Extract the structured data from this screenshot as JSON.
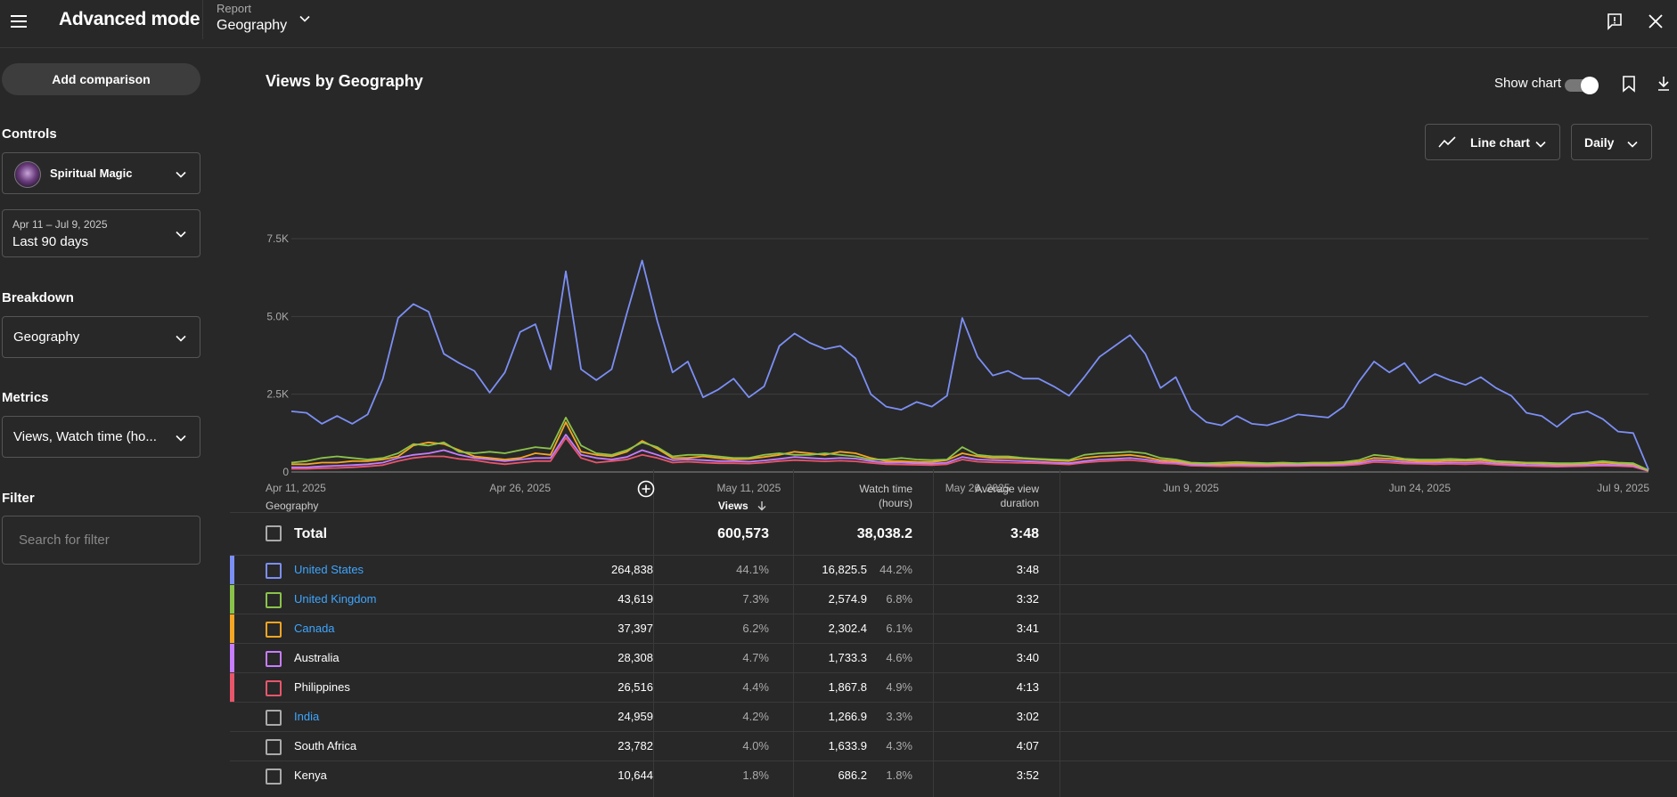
{
  "header": {
    "app_title": "Advanced mode",
    "report_label": "Report",
    "report_value": "Geography"
  },
  "sidebar": {
    "add_comparison": "Add comparison",
    "controls_label": "Controls",
    "channel_name": "Spiritual Magic",
    "date_range": "Apr 11 – Jul 9, 2025",
    "date_label": "Last 90 days",
    "breakdown_label": "Breakdown",
    "breakdown_value": "Geography",
    "metrics_label": "Metrics",
    "metrics_value": "Views, Watch time (ho...",
    "filter_label": "Filter",
    "filter_placeholder": "Search for filter"
  },
  "main": {
    "chart_title": "Views by Geography",
    "show_chart_label": "Show chart",
    "show_chart_on": true,
    "chart_type_label": "Line chart",
    "interval_label": "Daily"
  },
  "chart_data": {
    "type": "line",
    "x_ticks": [
      "Apr 11, 2025",
      "Apr 26, 2025",
      "May 11, 2025",
      "May 26, 2025",
      "Jun 9, 2025",
      "Jun 24, 2025",
      "Jul 9, 2025"
    ],
    "y_ticks": [
      "0",
      "2.5K",
      "5.0K",
      "7.5K"
    ],
    "ylim": [
      0,
      7500
    ],
    "x_start": "Apr 11, 2025",
    "x_end": "Jul 9, 2025",
    "grid": true,
    "series": [
      {
        "color": "#7c8ff5",
        "values": [
          1950,
          1900,
          1550,
          1800,
          1550,
          1850,
          3000,
          4950,
          5400,
          5150,
          3800,
          3500,
          3250,
          2550,
          3200,
          4500,
          4750,
          3300,
          6450,
          3300,
          2950,
          3300,
          5100,
          6800,
          4850,
          3200,
          3550,
          2400,
          2650,
          3000,
          2400,
          2750,
          4050,
          4450,
          4150,
          3950,
          4050,
          3650,
          2500,
          2100,
          2000,
          2250,
          2100,
          2450,
          4950,
          3700,
          3100,
          3250,
          3000,
          3000,
          2750,
          2450,
          3050,
          3700,
          4050,
          4400,
          3800,
          2700,
          3050,
          2000,
          1600,
          1500,
          1800,
          1550,
          1500,
          1650,
          1850,
          1800,
          1750,
          2100,
          2900,
          3550,
          3200,
          3500,
          2850,
          3150,
          2950,
          2800,
          3050,
          2700,
          2450,
          1900,
          1800,
          1450,
          1850,
          1950,
          1700,
          1300,
          1250,
          80
        ]
      },
      {
        "color": "#8bc34a",
        "values": [
          300,
          350,
          450,
          500,
          450,
          400,
          450,
          600,
          900,
          850,
          950,
          650,
          600,
          650,
          600,
          700,
          800,
          750,
          1750,
          850,
          600,
          550,
          700,
          950,
          800,
          500,
          550,
          550,
          500,
          450,
          450,
          550,
          600,
          550,
          550,
          600,
          550,
          500,
          400,
          400,
          450,
          400,
          380,
          400,
          800,
          550,
          500,
          500,
          450,
          420,
          400,
          380,
          550,
          600,
          620,
          650,
          600,
          450,
          400,
          300,
          280,
          300,
          320,
          300,
          280,
          300,
          280,
          300,
          300,
          320,
          380,
          550,
          500,
          420,
          400,
          400,
          420,
          400,
          430,
          350,
          330,
          300,
          300,
          280,
          280,
          300,
          350,
          300,
          280,
          60
        ]
      },
      {
        "color": "#f5a623",
        "values": [
          250,
          250,
          300,
          300,
          350,
          350,
          400,
          500,
          850,
          950,
          900,
          700,
          500,
          450,
          400,
          450,
          600,
          550,
          1600,
          650,
          550,
          500,
          650,
          1000,
          750,
          450,
          450,
          500,
          450,
          400,
          420,
          480,
          550,
          650,
          600,
          550,
          650,
          600,
          450,
          350,
          350,
          330,
          320,
          380,
          600,
          500,
          450,
          450,
          430,
          400,
          370,
          350,
          450,
          500,
          520,
          550,
          480,
          380,
          350,
          280,
          260,
          250,
          270,
          260,
          250,
          260,
          260,
          270,
          270,
          290,
          330,
          450,
          430,
          380,
          350,
          350,
          370,
          360,
          380,
          320,
          300,
          280,
          270,
          250,
          250,
          270,
          300,
          270,
          250,
          50
        ]
      },
      {
        "color": "#c77dff",
        "values": [
          150,
          150,
          180,
          200,
          220,
          250,
          300,
          450,
          550,
          600,
          700,
          550,
          450,
          400,
          350,
          400,
          450,
          450,
          1200,
          550,
          450,
          400,
          480,
          700,
          550,
          380,
          400,
          380,
          350,
          350,
          330,
          370,
          420,
          480,
          450,
          420,
          450,
          430,
          350,
          300,
          300,
          280,
          270,
          300,
          480,
          400,
          380,
          370,
          350,
          330,
          300,
          280,
          350,
          400,
          420,
          450,
          400,
          330,
          300,
          240,
          220,
          220,
          230,
          220,
          210,
          220,
          220,
          230,
          230,
          250,
          280,
          380,
          360,
          320,
          300,
          300,
          310,
          300,
          320,
          270,
          250,
          230,
          220,
          200,
          210,
          220,
          240,
          220,
          200,
          40
        ]
      },
      {
        "color": "#e8566c",
        "values": [
          100,
          100,
          120,
          130,
          150,
          180,
          220,
          350,
          450,
          500,
          500,
          420,
          380,
          300,
          250,
          300,
          350,
          350,
          1100,
          450,
          300,
          350,
          400,
          550,
          450,
          300,
          330,
          300,
          280,
          280,
          270,
          300,
          350,
          380,
          360,
          340,
          360,
          340,
          290,
          250,
          240,
          230,
          220,
          250,
          400,
          330,
          310,
          300,
          290,
          280,
          260,
          240,
          300,
          340,
          360,
          380,
          340,
          280,
          260,
          200,
          190,
          180,
          190,
          180,
          180,
          190,
          190,
          200,
          200,
          210,
          240,
          320,
          300,
          270,
          260,
          250,
          260,
          250,
          270,
          230,
          210,
          190,
          180,
          170,
          180,
          190,
          200,
          190,
          170,
          30
        ]
      }
    ]
  },
  "table": {
    "headers": {
      "geography": "Geography",
      "views": "Views",
      "watch_time_1": "Watch time",
      "watch_time_2": "(hours)",
      "avd_1": "Average view",
      "avd_2": "duration"
    },
    "total": {
      "label": "Total",
      "views": "600,573",
      "watch_time": "38,038.2",
      "avd": "3:48"
    },
    "rows": [
      {
        "name": "United States",
        "views": "264,838",
        "views_pct": "44.1%",
        "watch": "16,825.5",
        "watch_pct": "44.2%",
        "avd": "3:48",
        "color": "#7c8ff5",
        "link": true
      },
      {
        "name": "United Kingdom",
        "views": "43,619",
        "views_pct": "7.3%",
        "watch": "2,574.9",
        "watch_pct": "6.8%",
        "avd": "3:32",
        "color": "#8bc34a",
        "link": true
      },
      {
        "name": "Canada",
        "views": "37,397",
        "views_pct": "6.2%",
        "watch": "2,302.4",
        "watch_pct": "6.1%",
        "avd": "3:41",
        "color": "#f5a623",
        "link": true
      },
      {
        "name": "Australia",
        "views": "28,308",
        "views_pct": "4.7%",
        "watch": "1,733.3",
        "watch_pct": "4.6%",
        "avd": "3:40",
        "color": "#c77dff",
        "link": false
      },
      {
        "name": "Philippines",
        "views": "26,516",
        "views_pct": "4.4%",
        "watch": "1,867.8",
        "watch_pct": "4.9%",
        "avd": "4:13",
        "color": "#e8566c",
        "link": false
      },
      {
        "name": "India",
        "views": "24,959",
        "views_pct": "4.2%",
        "watch": "1,266.9",
        "watch_pct": "3.3%",
        "avd": "3:02",
        "color": "",
        "link": true
      },
      {
        "name": "South Africa",
        "views": "23,782",
        "views_pct": "4.0%",
        "watch": "1,633.9",
        "watch_pct": "4.3%",
        "avd": "4:07",
        "color": "",
        "link": false
      },
      {
        "name": "Kenya",
        "views": "10,644",
        "views_pct": "1.8%",
        "watch": "686.2",
        "watch_pct": "1.8%",
        "avd": "3:52",
        "color": "",
        "link": false
      }
    ]
  }
}
